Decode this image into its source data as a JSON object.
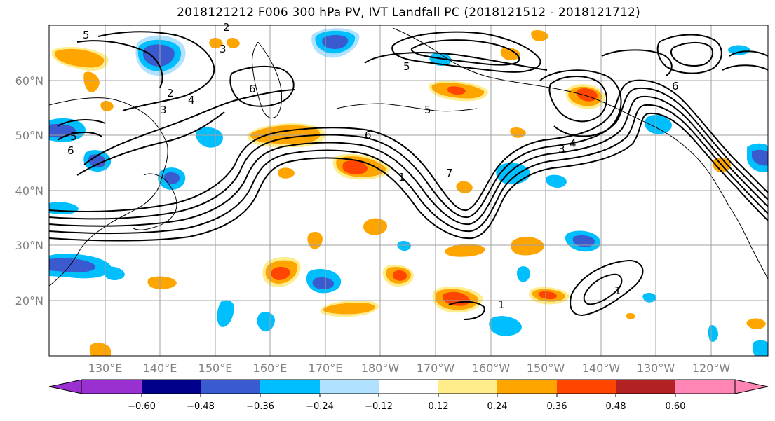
{
  "title": "2018121212 F006 300 hPa PV, IVT Landfall PC (2018121512 - 2018121712)",
  "map": {
    "lat_labels": [
      "60°N",
      "50°N",
      "40°N",
      "30°N",
      "20°N"
    ],
    "lon_labels": [
      "130°E",
      "140°E",
      "150°E",
      "160°E",
      "170°E",
      "180°W",
      "170°W",
      "160°W",
      "150°W",
      "140°W",
      "130°W",
      "120°W"
    ],
    "contour_labels": [
      "5",
      "2",
      "3",
      "2",
      "3",
      "4",
      "5",
      "6",
      "6",
      "5",
      "6",
      "1",
      "3",
      "4",
      "5",
      "7",
      "6",
      "1",
      "1"
    ]
  },
  "colorbar": {
    "tick_labels": [
      "−0.60",
      "−0.48",
      "−0.36",
      "−0.24",
      "−0.12",
      "0.12",
      "0.24",
      "0.36",
      "0.48",
      "0.60"
    ],
    "colors": [
      "#9b30d0",
      "#00008b",
      "#3a5ad0",
      "#00bfff",
      "#b0e2ff",
      "#ffffff",
      "#ffec8b",
      "#ffa500",
      "#ff4500",
      "#b22222",
      "#ff85b4"
    ]
  },
  "colors": {
    "neg_strong": "#3a5ad0",
    "neg": "#00bfff",
    "neg_light": "#b0e2ff",
    "pos_light": "#ffec8b",
    "pos": "#ffa500",
    "pos_strong": "#ff4500",
    "grid": "#a0a0a0",
    "contour": "#000000"
  }
}
